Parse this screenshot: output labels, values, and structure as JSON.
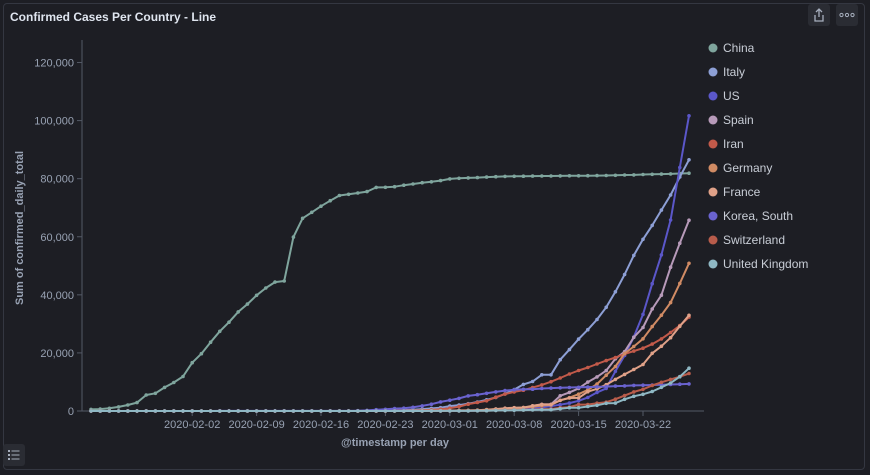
{
  "panel": {
    "title": "Confirmed Cases Per Country - Line",
    "share_icon": "share-icon",
    "more_icon": "more-icon",
    "legend_toggle_icon": "list-icon"
  },
  "chart_data": {
    "type": "line",
    "title": "Confirmed Cases Per Country - Line",
    "xlabel": "@timestamp per day",
    "ylabel": "Sum of confirmed_daily_total",
    "x": [
      "2020-01-22",
      "2020-01-23",
      "2020-01-24",
      "2020-01-25",
      "2020-01-26",
      "2020-01-27",
      "2020-01-28",
      "2020-01-29",
      "2020-01-30",
      "2020-01-31",
      "2020-02-01",
      "2020-02-02",
      "2020-02-03",
      "2020-02-04",
      "2020-02-05",
      "2020-02-06",
      "2020-02-07",
      "2020-02-08",
      "2020-02-09",
      "2020-02-10",
      "2020-02-11",
      "2020-02-12",
      "2020-02-13",
      "2020-02-14",
      "2020-02-15",
      "2020-02-16",
      "2020-02-17",
      "2020-02-18",
      "2020-02-19",
      "2020-02-20",
      "2020-02-21",
      "2020-02-22",
      "2020-02-23",
      "2020-02-24",
      "2020-02-25",
      "2020-02-26",
      "2020-02-27",
      "2020-02-28",
      "2020-02-29",
      "2020-03-01",
      "2020-03-02",
      "2020-03-03",
      "2020-03-04",
      "2020-03-05",
      "2020-03-06",
      "2020-03-07",
      "2020-03-08",
      "2020-03-09",
      "2020-03-10",
      "2020-03-11",
      "2020-03-12",
      "2020-03-13",
      "2020-03-14",
      "2020-03-15",
      "2020-03-16",
      "2020-03-17",
      "2020-03-18",
      "2020-03-19",
      "2020-03-20",
      "2020-03-21",
      "2020-03-22",
      "2020-03-23",
      "2020-03-24",
      "2020-03-25",
      "2020-03-26",
      "2020-03-27"
    ],
    "x_ticks": [
      "2020-02-02",
      "2020-02-09",
      "2020-02-16",
      "2020-02-23",
      "2020-03-01",
      "2020-03-08",
      "2020-03-15",
      "2020-03-22"
    ],
    "y_ticks": [
      0,
      20000,
      40000,
      60000,
      80000,
      100000,
      120000
    ],
    "y_tick_labels": [
      "0",
      "20,000",
      "40,000",
      "60,000",
      "80,000",
      "100,000",
      "120,000"
    ],
    "ylim": [
      0,
      125000
    ],
    "legend_position": "right",
    "grid": false,
    "series": [
      {
        "name": "China",
        "color": "#7fa59d",
        "values": [
          548,
          643,
          920,
          1406,
          2075,
          2877,
          5509,
          6087,
          8141,
          9802,
          11891,
          16630,
          19716,
          23707,
          27440,
          30587,
          34110,
          36814,
          39829,
          42354,
          44386,
          44759,
          59895,
          66358,
          68413,
          70513,
          72434,
          74211,
          74619,
          75077,
          75550,
          77001,
          77022,
          77241,
          77754,
          78166,
          78600,
          78928,
          79356,
          79932,
          80136,
          80261,
          80386,
          80537,
          80690,
          80770,
          80823,
          80860,
          80887,
          80921,
          80932,
          80945,
          80977,
          81003,
          81033,
          81058,
          81102,
          81156,
          81250,
          81305,
          81435,
          81498,
          81591,
          81661,
          81782,
          81897
        ]
      },
      {
        "name": "Italy",
        "color": "#8d9fd5",
        "values": [
          0,
          0,
          0,
          0,
          0,
          0,
          0,
          0,
          0,
          2,
          2,
          2,
          2,
          2,
          2,
          2,
          3,
          3,
          3,
          3,
          3,
          3,
          3,
          3,
          3,
          3,
          3,
          3,
          3,
          3,
          20,
          62,
          155,
          229,
          322,
          453,
          655,
          888,
          1128,
          1694,
          2036,
          2502,
          3089,
          3858,
          4636,
          5883,
          7375,
          9172,
          10149,
          12462,
          12462,
          17660,
          21157,
          24747,
          27980,
          31506,
          35713,
          41035,
          47021,
          53578,
          59138,
          63927,
          69176,
          74386,
          80589,
          86498
        ]
      },
      {
        "name": "US",
        "color": "#5b57c9",
        "values": [
          1,
          1,
          2,
          2,
          5,
          5,
          5,
          5,
          5,
          7,
          8,
          8,
          11,
          11,
          11,
          11,
          11,
          11,
          11,
          11,
          12,
          12,
          13,
          13,
          13,
          13,
          13,
          13,
          13,
          13,
          15,
          15,
          15,
          51,
          51,
          57,
          58,
          60,
          68,
          74,
          98,
          118,
          149,
          217,
          262,
          402,
          518,
          583,
          959,
          1281,
          1663,
          2179,
          2727,
          3499,
          4632,
          6421,
          7786,
          13680,
          19101,
          25493,
          33276,
          43847,
          53740,
          65778,
          83836,
          101657
        ]
      },
      {
        "name": "Spain",
        "color": "#b79ab9",
        "values": [
          0,
          0,
          0,
          0,
          0,
          0,
          0,
          0,
          0,
          0,
          1,
          1,
          1,
          1,
          1,
          1,
          1,
          1,
          2,
          2,
          2,
          2,
          2,
          2,
          2,
          2,
          2,
          2,
          2,
          2,
          2,
          2,
          2,
          2,
          6,
          13,
          15,
          32,
          45,
          84,
          120,
          165,
          222,
          259,
          400,
          500,
          673,
          1073,
          1695,
          2277,
          2277,
          5232,
          6391,
          7798,
          9942,
          11748,
          13910,
          17963,
          20410,
          25374,
          28768,
          35136,
          39885,
          49515,
          57786,
          65719
        ]
      },
      {
        "name": "Iran",
        "color": "#c25a4a",
        "values": [
          0,
          0,
          0,
          0,
          0,
          0,
          0,
          0,
          0,
          0,
          0,
          0,
          0,
          0,
          0,
          0,
          0,
          0,
          0,
          0,
          0,
          0,
          0,
          0,
          0,
          0,
          0,
          0,
          2,
          5,
          18,
          28,
          43,
          61,
          95,
          139,
          245,
          388,
          593,
          978,
          1501,
          2336,
          2922,
          3513,
          4747,
          5823,
          6566,
          7161,
          8042,
          9000,
          10075,
          11364,
          12729,
          13938,
          14991,
          16169,
          17361,
          18407,
          19644,
          20610,
          21638,
          23049,
          24811,
          27017,
          29406,
          32332
        ]
      },
      {
        "name": "Germany",
        "color": "#d08b64",
        "values": [
          0,
          0,
          0,
          0,
          0,
          1,
          4,
          4,
          4,
          5,
          8,
          10,
          12,
          12,
          12,
          12,
          13,
          13,
          14,
          14,
          16,
          16,
          16,
          16,
          16,
          16,
          16,
          16,
          16,
          16,
          16,
          16,
          16,
          16,
          17,
          27,
          46,
          48,
          79,
          130,
          159,
          196,
          262,
          482,
          670,
          799,
          1040,
          1176,
          1457,
          1908,
          2078,
          3675,
          4585,
          5795,
          7272,
          9257,
          12327,
          15320,
          19848,
          22213,
          24873,
          29056,
          32986,
          37323,
          43938,
          50871
        ]
      },
      {
        "name": "France",
        "color": "#e0a188",
        "values": [
          0,
          0,
          2,
          3,
          3,
          3,
          4,
          5,
          5,
          5,
          6,
          6,
          6,
          6,
          6,
          6,
          6,
          11,
          11,
          11,
          11,
          11,
          11,
          11,
          12,
          12,
          12,
          12,
          12,
          12,
          12,
          12,
          12,
          12,
          14,
          18,
          38,
          57,
          100,
          130,
          191,
          204,
          288,
          380,
          656,
          957,
          1134,
          1217,
          1792,
          2289,
          2289,
          3672,
          4480,
          4513,
          6650,
          7652,
          9043,
          10871,
          12612,
          14282,
          16018,
          19856,
          22304,
          25233,
          29155,
          32964
        ]
      },
      {
        "name": "Korea, South",
        "color": "#6a63cf",
        "values": [
          1,
          1,
          2,
          2,
          3,
          4,
          4,
          4,
          4,
          11,
          12,
          15,
          15,
          16,
          19,
          23,
          24,
          24,
          25,
          27,
          28,
          28,
          28,
          28,
          28,
          29,
          30,
          31,
          31,
          104,
          204,
          433,
          602,
          833,
          977,
          1261,
          1766,
          2337,
          3150,
          3736,
          4335,
          5186,
          5621,
          6088,
          6593,
          7041,
          7314,
          7478,
          7513,
          7755,
          7869,
          7979,
          8086,
          8162,
          8236,
          8320,
          8413,
          8565,
          8652,
          8799,
          8897,
          8961,
          9037,
          9137,
          9241,
          9332
        ]
      },
      {
        "name": "Switzerland",
        "color": "#b85c4b",
        "values": [
          0,
          0,
          0,
          0,
          0,
          0,
          0,
          0,
          0,
          0,
          0,
          0,
          0,
          0,
          0,
          0,
          0,
          0,
          0,
          0,
          0,
          0,
          0,
          0,
          0,
          0,
          0,
          0,
          0,
          0,
          0,
          0,
          0,
          0,
          1,
          1,
          8,
          8,
          18,
          27,
          42,
          56,
          90,
          114,
          214,
          268,
          337,
          374,
          491,
          652,
          652,
          1139,
          1359,
          2200,
          2200,
          2700,
          3028,
          4075,
          5294,
          6575,
          7474,
          8795,
          9877,
          10897,
          11811,
          12928
        ]
      },
      {
        "name": "United Kingdom",
        "color": "#8fb8c4",
        "values": [
          0,
          0,
          0,
          0,
          0,
          0,
          0,
          0,
          0,
          2,
          2,
          2,
          2,
          2,
          2,
          2,
          3,
          3,
          3,
          8,
          8,
          9,
          9,
          9,
          9,
          9,
          9,
          9,
          9,
          9,
          9,
          9,
          9,
          13,
          13,
          13,
          15,
          20,
          23,
          36,
          40,
          51,
          86,
          116,
          164,
          207,
          274,
          322,
          384,
          459,
          459,
          802,
          1144,
          1145,
          1551,
          1960,
          2642,
          2716,
          4014,
          5067,
          5745,
          6726,
          8164,
          9640,
          11812,
          14745
        ]
      }
    ]
  }
}
